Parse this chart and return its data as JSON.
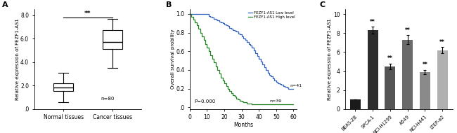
{
  "panel_A": {
    "title_label": "A",
    "ylabel": "Relative expression of FEZF1-AS1",
    "categories": [
      "Normal tissues",
      "Cancer tissues"
    ],
    "normal_box": {
      "median": 1.85,
      "q1": 1.55,
      "q3": 2.2,
      "whislo": 0.6,
      "whishi": 3.1,
      "n": 80
    },
    "cancer_box": {
      "median": 5.7,
      "q1": 5.1,
      "q3": 6.7,
      "whislo": 3.5,
      "whishi": 7.7
    },
    "ylim": [
      0,
      8.5
    ],
    "yticks": [
      0.0,
      2.0,
      4.0,
      6.0,
      8.0
    ],
    "sig_text": "**"
  },
  "panel_B": {
    "title_label": "B",
    "xlabel": "Months",
    "ylabel": "Overall survival probility",
    "p_text": "P=0.000",
    "low_label": "FEZF1-AS1 Low level",
    "high_label": "FEZF1-AS1 High level",
    "low_color": "#3060C0",
    "high_color": "#208020",
    "low_n": 41,
    "high_n": 39,
    "low_x": [
      0,
      2,
      4,
      6,
      8,
      10,
      11,
      12,
      13,
      14,
      15,
      16,
      17,
      18,
      19,
      20,
      21,
      22,
      23,
      24,
      25,
      26,
      27,
      28,
      29,
      30,
      31,
      32,
      33,
      34,
      35,
      36,
      37,
      38,
      39,
      40,
      41,
      42,
      43,
      44,
      45,
      46,
      47,
      48,
      49,
      50,
      51,
      52,
      53,
      54,
      55,
      56,
      57,
      58,
      59,
      60
    ],
    "low_y": [
      1.0,
      1.0,
      1.0,
      1.0,
      1.0,
      1.0,
      0.98,
      0.97,
      0.96,
      0.95,
      0.94,
      0.93,
      0.92,
      0.91,
      0.9,
      0.89,
      0.88,
      0.87,
      0.85,
      0.84,
      0.83,
      0.82,
      0.81,
      0.79,
      0.78,
      0.76,
      0.74,
      0.72,
      0.7,
      0.68,
      0.66,
      0.64,
      0.61,
      0.58,
      0.55,
      0.52,
      0.49,
      0.46,
      0.43,
      0.4,
      0.37,
      0.35,
      0.33,
      0.31,
      0.29,
      0.27,
      0.26,
      0.25,
      0.24,
      0.23,
      0.22,
      0.21,
      0.2,
      0.2,
      0.2,
      0.2
    ],
    "high_x": [
      0,
      1,
      2,
      3,
      4,
      5,
      6,
      7,
      8,
      9,
      10,
      11,
      12,
      13,
      14,
      15,
      16,
      17,
      18,
      19,
      20,
      21,
      22,
      23,
      24,
      25,
      26,
      27,
      28,
      29,
      30,
      31,
      32,
      33,
      34,
      35,
      36,
      37,
      38,
      39,
      40,
      41,
      42,
      43,
      44,
      45,
      50,
      55,
      60
    ],
    "high_y": [
      1.0,
      0.97,
      0.94,
      0.91,
      0.88,
      0.84,
      0.8,
      0.76,
      0.72,
      0.68,
      0.64,
      0.6,
      0.56,
      0.52,
      0.48,
      0.44,
      0.4,
      0.36,
      0.32,
      0.29,
      0.26,
      0.23,
      0.2,
      0.17,
      0.15,
      0.13,
      0.11,
      0.09,
      0.08,
      0.07,
      0.06,
      0.05,
      0.05,
      0.04,
      0.04,
      0.04,
      0.03,
      0.03,
      0.03,
      0.03,
      0.03,
      0.03,
      0.03,
      0.03,
      0.03,
      0.03,
      0.03,
      0.03,
      0.03
    ],
    "xlim": [
      0,
      62
    ],
    "ylim": [
      -0.02,
      1.05
    ],
    "yticks": [
      0.0,
      0.2,
      0.4,
      0.6,
      0.8,
      1.0
    ],
    "xticks": [
      0,
      10,
      20,
      30,
      40,
      50,
      60
    ]
  },
  "panel_C": {
    "title_label": "C",
    "ylabel": "Relative expression of FEZF1-AS1",
    "categories": [
      "BEAS-2B",
      "SPCA-1",
      "NCI-H1299",
      "A549",
      "NCI-H441",
      "LTEP-a2"
    ],
    "values": [
      1.0,
      8.3,
      4.5,
      7.3,
      3.9,
      6.2
    ],
    "errors": [
      0.0,
      0.38,
      0.28,
      0.48,
      0.22,
      0.32
    ],
    "colors": [
      "#1a1a1a",
      "#2d2d2d",
      "#555555",
      "#6a6a6a",
      "#8a8a8a",
      "#b0b0b0"
    ],
    "ylim": [
      0,
      10.5
    ],
    "yticks": [
      0,
      2,
      4,
      6,
      8,
      10
    ],
    "sig_markers": [
      "",
      "**",
      "**",
      "**",
      "**",
      "**"
    ]
  }
}
